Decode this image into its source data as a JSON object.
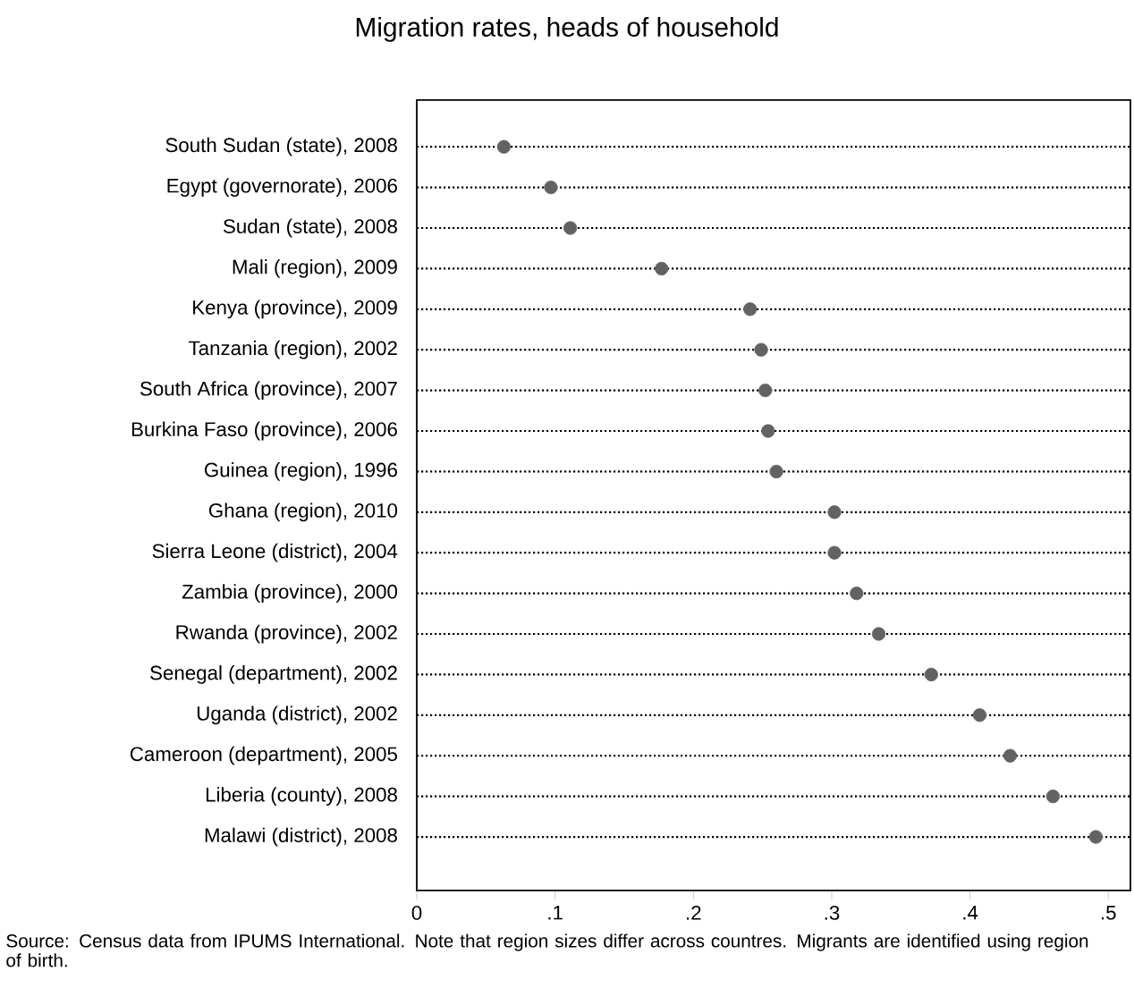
{
  "chart_data": {
    "type": "scatter",
    "orientation": "horizontal",
    "title": "Migration rates, heads of household",
    "categories": [
      "South Sudan (state), 2008",
      "Egypt (governorate), 2006",
      "Sudan (state), 2008",
      "Mali (region), 2009",
      "Kenya (province), 2009",
      "Tanzania (region), 2002",
      "South Africa (province), 2007",
      "Burkina Faso (province), 2006",
      "Guinea (region), 1996",
      "Ghana (region), 2010",
      "Sierra Leone (district), 2004",
      "Zambia (province), 2000",
      "Rwanda (province), 2002",
      "Senegal (department), 2002",
      "Uganda (district), 2002",
      "Cameroon (department), 2005",
      "Liberia (county), 2008",
      "Malawi (district), 2008"
    ],
    "values": [
      0.063,
      0.097,
      0.111,
      0.177,
      0.241,
      0.249,
      0.252,
      0.254,
      0.26,
      0.302,
      0.302,
      0.318,
      0.334,
      0.372,
      0.407,
      0.429,
      0.46,
      0.491
    ],
    "color": "#626262",
    "marker": "circle",
    "grid": "y",
    "line_style": "dotted",
    "xlim": [
      0,
      0.516
    ],
    "xticks": [
      0,
      {
        "value": 0.1,
        "label": ".1"
      },
      {
        "value": 0.2,
        "label": ".2"
      },
      {
        "value": 0.3,
        "label": ".3"
      },
      {
        "value": 0.4,
        "label": ".4"
      },
      {
        "value": 0.5,
        "label": ".5"
      }
    ],
    "annotations": [
      "Source: Census data from IPUMS International. Note that region sizes differ across countres. Migrants are identified using region of birth."
    ]
  }
}
